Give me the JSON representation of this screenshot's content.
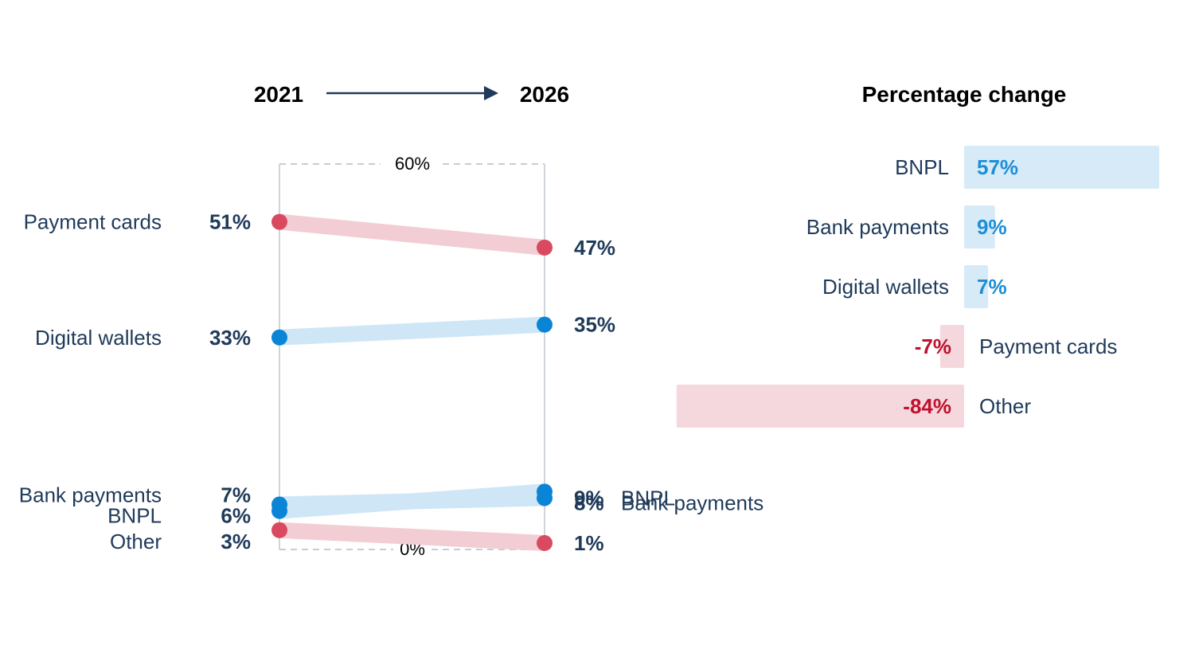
{
  "colors": {
    "text": "#1f3a5a",
    "axis": "#c8ccd4",
    "negative_line": "#f3cdd4",
    "negative_dot": "#d94a60",
    "negative_text": "#c0102c",
    "positive_line": "#cfe6f6",
    "positive_dot": "#0a84d6",
    "positive_text": "#1c8fd6",
    "positive_bar": "#d6eaf8",
    "negative_bar": "#f5d8de"
  },
  "header": {
    "start_year": "2021",
    "end_year": "2026",
    "pct_change_title": "Percentage change"
  },
  "chart_data": [
    {
      "type": "slope",
      "title": "",
      "x": [
        "2021",
        "2026"
      ],
      "ylim": [
        0,
        60
      ],
      "axis_max_label": "60%",
      "axis_min_label": "0%",
      "series": [
        {
          "name": "Payment cards",
          "start": 51,
          "end": 47,
          "start_label": "51%",
          "end_label": "47%",
          "trend": "down",
          "end_name": ""
        },
        {
          "name": "Digital wallets",
          "start": 33,
          "end": 35,
          "start_label": "33%",
          "end_label": "35%",
          "trend": "up",
          "end_name": ""
        },
        {
          "name": "Bank payments",
          "start": 7,
          "end": 8,
          "start_label": "7%",
          "end_label": "8%",
          "trend": "up",
          "end_name": "Bank payments"
        },
        {
          "name": "BNPL",
          "start": 6,
          "end": 9,
          "start_label": "6%",
          "end_label": "9%",
          "trend": "up",
          "end_name": "BNPL"
        },
        {
          "name": "Other",
          "start": 3,
          "end": 1,
          "start_label": "3%",
          "end_label": "1%",
          "trend": "down",
          "end_name": ""
        }
      ]
    },
    {
      "type": "bar",
      "title": "Percentage change",
      "orientation": "horizontal",
      "categories": [
        "BNPL",
        "Bank payments",
        "Digital wallets",
        "Payment cards",
        "Other"
      ],
      "values": [
        57,
        9,
        7,
        -7,
        -84
      ],
      "labels": [
        "57%",
        "9%",
        "7%",
        "-7%",
        "-84%"
      ]
    }
  ]
}
